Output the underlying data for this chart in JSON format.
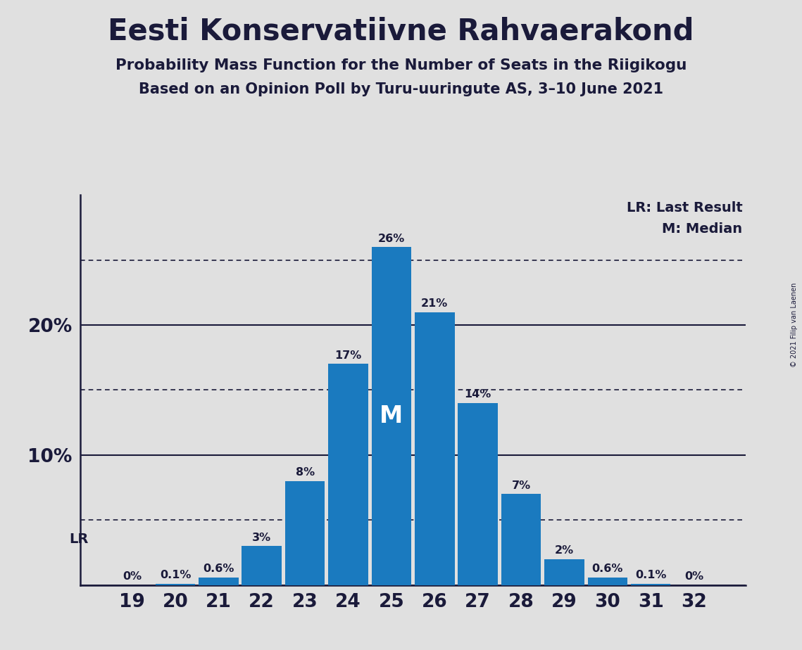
{
  "title": "Eesti Konservatiivne Rahvaerakond",
  "subtitle1": "Probability Mass Function for the Number of Seats in the Riigikogu",
  "subtitle2": "Based on an Opinion Poll by Turu-uuringute AS, 3–10 June 2021",
  "copyright": "© 2021 Filip van Laenen",
  "seats": [
    19,
    20,
    21,
    22,
    23,
    24,
    25,
    26,
    27,
    28,
    29,
    30,
    31,
    32
  ],
  "probabilities": [
    0.0,
    0.1,
    0.6,
    3.0,
    8.0,
    17.0,
    26.0,
    21.0,
    14.0,
    7.0,
    2.0,
    0.6,
    0.1,
    0.0
  ],
  "labels": [
    "0%",
    "0.1%",
    "0.6%",
    "3%",
    "8%",
    "17%",
    "26%",
    "21%",
    "14%",
    "7%",
    "2%",
    "0.6%",
    "0.1%",
    "0%"
  ],
  "bar_color": "#1a7abf",
  "median_seat": 25,
  "lr_seat": 19,
  "background_color": "#e0e0e0",
  "plot_bg_color": "#e0e0e0",
  "axis_color": "#1a1a3a",
  "grid_color": "#1a1a3a",
  "dotted_lines": [
    5.0,
    15.0,
    25.0
  ],
  "solid_lines": [
    10.0,
    20.0
  ],
  "ylim": [
    0,
    30
  ],
  "legend_lr": "LR: Last Result",
  "legend_m": "M: Median"
}
